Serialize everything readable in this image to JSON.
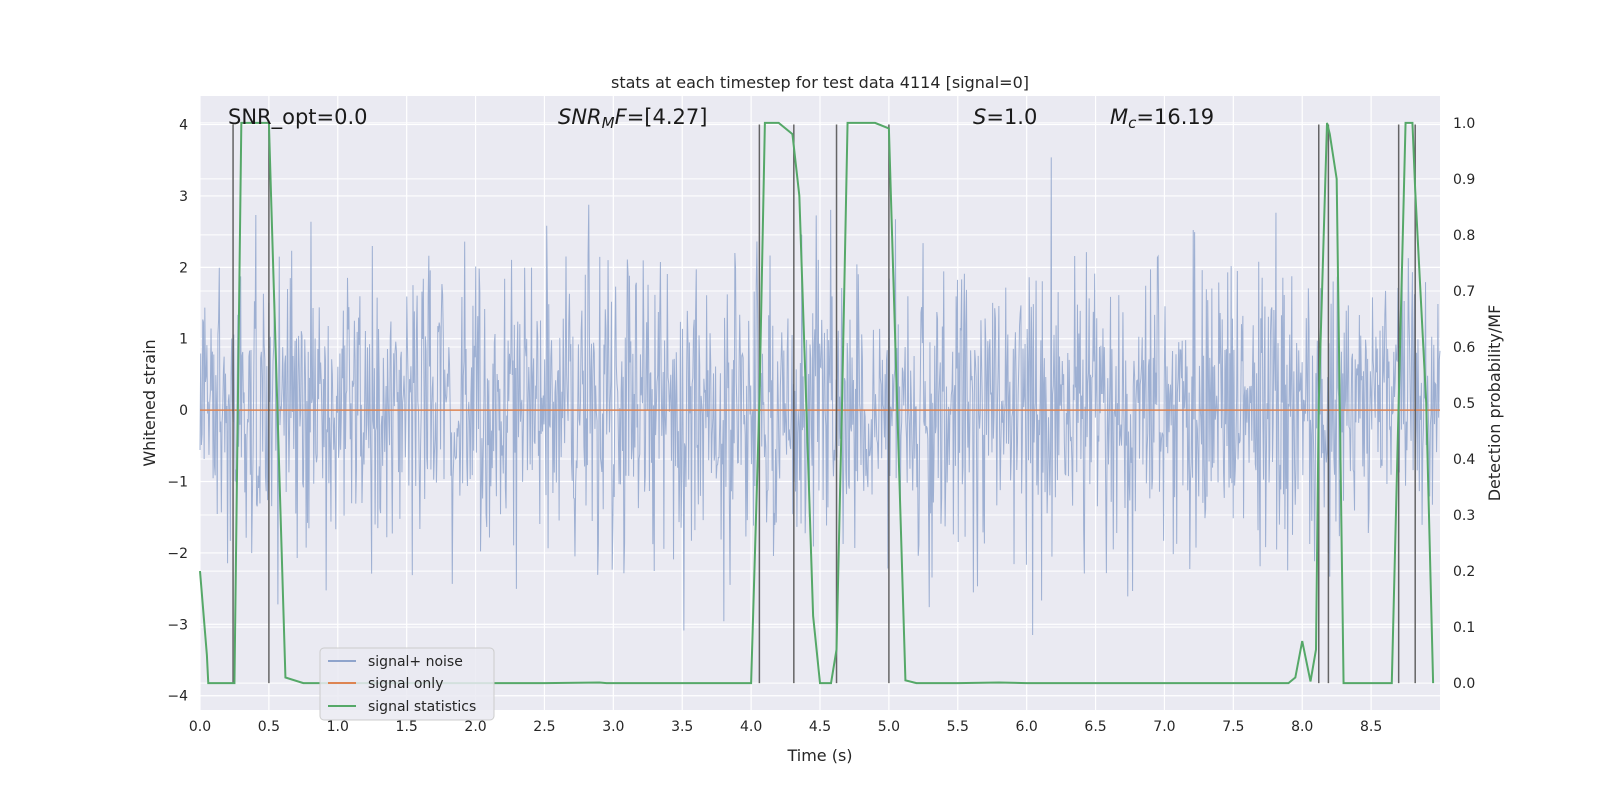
{
  "chart_data": {
    "type": "line",
    "title": "stats at each timestep for test data 4114 [signal=0]",
    "xlabel": "Time (s)",
    "ylabel": "Whitened strain",
    "y2label": "Detection probability/MF",
    "xlim": [
      0,
      9.0
    ],
    "ylim": [
      -4.2,
      4.4
    ],
    "y2lim": [
      -0.048,
      1.048
    ],
    "x_ticks": [
      "0.0",
      "0.5",
      "1.0",
      "1.5",
      "2.0",
      "2.5",
      "3.0",
      "3.5",
      "4.0",
      "4.5",
      "5.0",
      "5.5",
      "6.0",
      "6.5",
      "7.0",
      "7.5",
      "8.0",
      "8.5"
    ],
    "y_ticks": [
      "4",
      "3",
      "2",
      "1",
      "0",
      "−1",
      "−2",
      "−3",
      "−4"
    ],
    "y2_ticks": [
      "1.0",
      "0.9",
      "0.8",
      "0.7",
      "0.6",
      "0.5",
      "0.4",
      "0.3",
      "0.2",
      "0.1",
      "0.0"
    ],
    "grid": true,
    "legend_placement": "lower-left",
    "annotations": {
      "snr_opt": "SNR_opt=0.0",
      "snr_mf_sym": "SNR",
      "snr_mf_sub": "M",
      "snr_mf_f": "F",
      "snr_mf_val": "=[4.27]",
      "s_sym": "S",
      "s_val": "=1.0",
      "mc_sym": "M",
      "mc_sub": "c",
      "mc_val": "=16.19"
    },
    "series": [
      {
        "name": "signal+ noise",
        "color": "#8fa4cc",
        "style": "noise",
        "axis": "left",
        "noise_sigma": 1.0,
        "x_range": [
          0,
          9.0
        ]
      },
      {
        "name": "signal only",
        "color": "#dd8452",
        "axis": "left",
        "x": [
          0,
          9.0
        ],
        "y": [
          0,
          0
        ]
      },
      {
        "name": "signal statistics",
        "color": "#55a868",
        "axis": "right",
        "x": [
          0,
          0.05,
          0.06,
          0.25,
          0.3,
          0.5,
          0.62,
          0.75,
          0.8,
          1.0,
          1.5,
          2.0,
          2.5,
          2.9,
          2.95,
          3.5,
          4.0,
          4.06,
          4.1,
          4.2,
          4.3,
          4.35,
          4.4,
          4.45,
          4.5,
          4.58,
          4.62,
          4.66,
          4.7,
          4.75,
          4.9,
          5.0,
          5.12,
          5.2,
          5.5,
          5.8,
          6.0,
          6.5,
          7.0,
          7.5,
          7.9,
          7.95,
          8.0,
          8.06,
          8.1,
          8.12,
          8.18,
          8.2,
          8.25,
          8.3,
          8.35,
          8.5,
          8.65,
          8.7,
          8.75,
          8.8,
          8.82,
          8.9,
          8.95
        ],
        "y": [
          0.2,
          0.05,
          0.0,
          0.0,
          1.0,
          1.0,
          0.01,
          0.0,
          0.0,
          0.0,
          0.0,
          0.0,
          0.0,
          0.001,
          0.0,
          0.0,
          0.0,
          0.5,
          1.0,
          1.0,
          0.98,
          0.87,
          0.5,
          0.12,
          0.0,
          0.0,
          0.06,
          0.5,
          1.0,
          1.0,
          1.0,
          0.99,
          0.005,
          0.0,
          0.0,
          0.001,
          0.0,
          0.0,
          0.0,
          0.0,
          0.0,
          0.01,
          0.075,
          0.003,
          0.06,
          0.5,
          1.0,
          0.98,
          0.9,
          0.0,
          0.0,
          0.0,
          0.0,
          0.5,
          1.0,
          1.0,
          0.88,
          0.5,
          0.0
        ]
      }
    ],
    "vertical_lines": [
      {
        "x": 0.24,
        "top": 4.0
      },
      {
        "x": 0.5,
        "top": 4.0
      },
      {
        "x": 4.06,
        "top": 4.0
      },
      {
        "x": 4.31,
        "top": 4.0
      },
      {
        "x": 4.62,
        "top": 4.0
      },
      {
        "x": 5.0,
        "top": 4.0
      },
      {
        "x": 8.12,
        "top": 4.0
      },
      {
        "x": 8.19,
        "top": 4.0
      },
      {
        "x": 8.7,
        "top": 4.0
      },
      {
        "x": 8.82,
        "top": 4.0
      }
    ],
    "legend": [
      "signal+ noise",
      "signal only",
      "signal statistics"
    ]
  }
}
